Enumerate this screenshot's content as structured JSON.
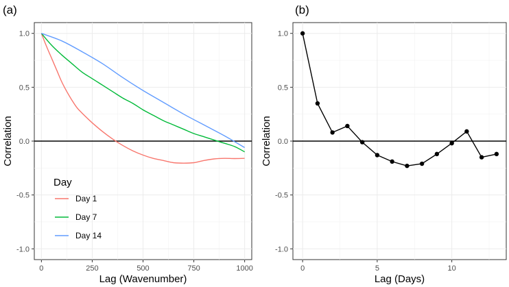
{
  "panels": [
    {
      "tag": "(a)",
      "xlabel": "Lag (Wavenumber)",
      "ylabel": "Correlation",
      "xticks": [
        "0",
        "250",
        "500",
        "750",
        "1000"
      ],
      "yticks": [
        "-1.0",
        "-0.5",
        "0.0",
        "0.5",
        "1.0"
      ],
      "legend_title": "Day",
      "legend_items": [
        "Day 1",
        "Day 7",
        "Day 14"
      ]
    },
    {
      "tag": "(b)",
      "xlabel": "Lag (Days)",
      "ylabel": "Correlation",
      "xticks": [
        "0",
        "5",
        "10"
      ],
      "yticks": [
        "-1.0",
        "-0.5",
        "0.0",
        "0.5",
        "1.0"
      ]
    }
  ],
  "chart_data": [
    {
      "type": "line",
      "tag": "(a)",
      "xlabel": "Lag (Wavenumber)",
      "ylabel": "Correlation",
      "xlim": [
        -35,
        1035
      ],
      "ylim": [
        -1.1,
        1.1
      ],
      "xticks": [
        0,
        250,
        500,
        750,
        1000
      ],
      "yticks": [
        -1.0,
        -0.5,
        0.0,
        0.5,
        1.0
      ],
      "grid": true,
      "hline": 0,
      "legend": {
        "title": "Day",
        "position": "bottom-left inside"
      },
      "series": [
        {
          "name": "Day 1",
          "color": "#F8766D",
          "x": [
            0,
            25,
            50,
            75,
            100,
            125,
            150,
            175,
            200,
            250,
            300,
            350,
            400,
            450,
            500,
            550,
            600,
            650,
            700,
            750,
            800,
            850,
            900,
            950,
            1000
          ],
          "y": [
            1.0,
            0.88,
            0.77,
            0.66,
            0.55,
            0.46,
            0.38,
            0.31,
            0.26,
            0.17,
            0.09,
            0.02,
            -0.04,
            -0.09,
            -0.13,
            -0.16,
            -0.18,
            -0.2,
            -0.205,
            -0.2,
            -0.18,
            -0.165,
            -0.16,
            -0.162,
            -0.16
          ]
        },
        {
          "name": "Day 7",
          "color": "#00BA38",
          "x": [
            0,
            50,
            100,
            150,
            200,
            250,
            300,
            350,
            400,
            450,
            500,
            550,
            600,
            650,
            700,
            750,
            800,
            850,
            900,
            950,
            1000
          ],
          "y": [
            1.0,
            0.89,
            0.8,
            0.72,
            0.64,
            0.58,
            0.52,
            0.46,
            0.4,
            0.35,
            0.29,
            0.24,
            0.19,
            0.15,
            0.11,
            0.07,
            0.04,
            0.01,
            -0.02,
            -0.05,
            -0.1
          ]
        },
        {
          "name": "Day 14",
          "color": "#619CFF",
          "x": [
            0,
            100,
            200,
            300,
            400,
            500,
            600,
            700,
            800,
            900,
            1000
          ],
          "y": [
            1.0,
            0.93,
            0.83,
            0.72,
            0.59,
            0.47,
            0.36,
            0.25,
            0.15,
            0.05,
            -0.06
          ]
        }
      ]
    },
    {
      "type": "line",
      "tag": "(b)",
      "xlabel": "Lag (Days)",
      "ylabel": "Correlation",
      "xlim": [
        -0.65,
        13.65
      ],
      "ylim": [
        -1.1,
        1.1
      ],
      "xticks": [
        0,
        5,
        10
      ],
      "yticks": [
        -1.0,
        -0.5,
        0.0,
        0.5,
        1.0
      ],
      "grid": true,
      "hline": 0,
      "markers": true,
      "series": [
        {
          "color": "#000000",
          "x": [
            0,
            1,
            2,
            3,
            4,
            5,
            6,
            7,
            8,
            9,
            10,
            11,
            12,
            13
          ],
          "y": [
            1.0,
            0.35,
            0.08,
            0.14,
            -0.01,
            -0.13,
            -0.19,
            -0.23,
            -0.21,
            -0.12,
            -0.02,
            0.09,
            -0.15,
            -0.12
          ]
        }
      ]
    }
  ]
}
